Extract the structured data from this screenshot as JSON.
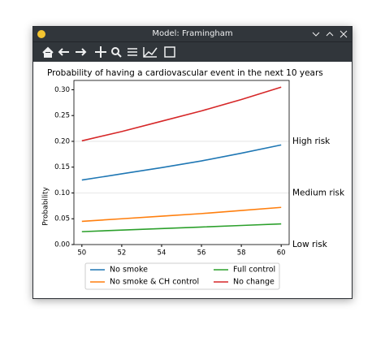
{
  "window": {
    "title": "Model: Framingham"
  },
  "chart_data": {
    "type": "line",
    "title": "Probability of having a cardiovascular event in the next 10 years",
    "y_label": "Probability",
    "x": [
      50,
      52,
      54,
      56,
      58,
      60
    ],
    "series": [
      {
        "name": "No smoke",
        "color": "#1f77b4",
        "values": [
          0.125,
          0.137,
          0.149,
          0.162,
          0.177,
          0.193
        ]
      },
      {
        "name": "No smoke & CH control",
        "color": "#ff7f0e",
        "values": [
          0.045,
          0.05,
          0.055,
          0.06,
          0.066,
          0.072
        ]
      },
      {
        "name": "Full control",
        "color": "#2ca02c",
        "values": [
          0.025,
          0.028,
          0.031,
          0.034,
          0.037,
          0.04
        ]
      },
      {
        "name": "No change",
        "color": "#d62728",
        "values": [
          0.201,
          0.219,
          0.239,
          0.259,
          0.281,
          0.305
        ]
      }
    ],
    "xlim": [
      49.6,
      60.4
    ],
    "ylim": [
      0,
      0.318
    ],
    "xticks": [
      50,
      52,
      54,
      56,
      58,
      60
    ],
    "yticks": [
      {
        "value": 0,
        "label": "0.00"
      },
      {
        "value": 0.05,
        "label": "0.05"
      },
      {
        "value": 0.1,
        "label": "0.10"
      },
      {
        "value": 0.15,
        "label": "0.15"
      },
      {
        "value": 0.2,
        "label": "0.20"
      },
      {
        "value": 0.25,
        "label": "0.25"
      },
      {
        "value": 0.3,
        "label": "0.30"
      }
    ],
    "annotations": [
      {
        "text": "High risk",
        "y": 0.2
      },
      {
        "text": "Medium risk",
        "y": 0.1
      },
      {
        "text": "Low risk",
        "y": 0
      }
    ],
    "legend": "lower center outside"
  }
}
